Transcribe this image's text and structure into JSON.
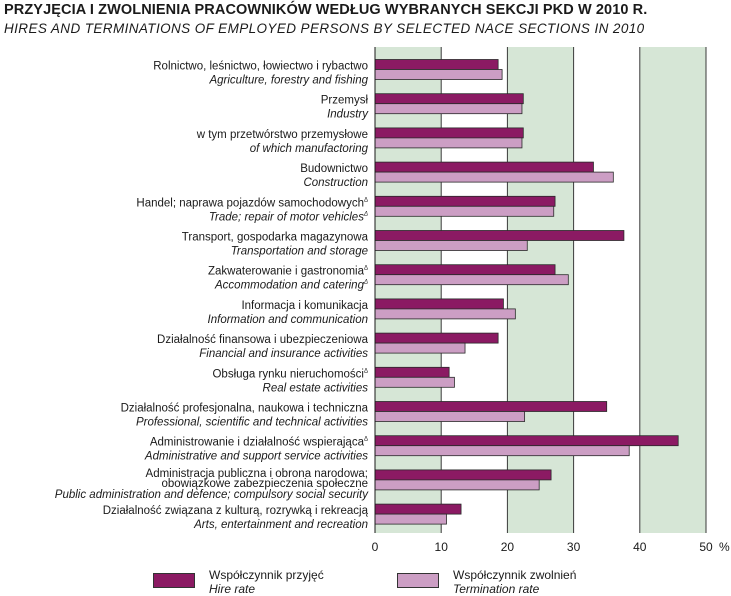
{
  "title": "PRZYJĘCIA I ZWOLNIENIA PRACOWNIKÓW WEDŁUG WYBRANYCH SEKCJI PKD W 2010 R.",
  "subtitle": "HIRES AND TERMINATIONS OF EMPLOYED PERSONS BY SELECTED NACE SECTIONS IN 2010",
  "colors": {
    "hire": "#8b1a63",
    "termination": "#cc9ec4",
    "plot_background": "#d6e6d6",
    "gridline": "#3a3a3a"
  },
  "chart_data": {
    "type": "bar",
    "orientation": "horizontal",
    "categories": [
      {
        "pl": "Rolnictwo, leśnictwo, łowiectwo i rybactwo",
        "en": "Agriculture, forestry and fishing"
      },
      {
        "pl": "Przemysł",
        "en": "Industry"
      },
      {
        "pl": "w tym przetwórstwo przemysłowe",
        "en": "of which manufactoring"
      },
      {
        "pl": "Budownictwo",
        "en": "Construction"
      },
      {
        "pl": "Handel; naprawa pojazdów samochodowych",
        "pl_sup": "Δ",
        "en": "Trade; repair of motor vehicles",
        "en_sup": "Δ"
      },
      {
        "pl": "Transport, gospodarka magazynowa",
        "en": "Transportation and storage"
      },
      {
        "pl": "Zakwaterowanie i gastronomia",
        "pl_sup": "Δ",
        "en": "Accommodation and catering",
        "en_sup": "Δ"
      },
      {
        "pl": "Informacja i komunikacja",
        "en": "Information and communication"
      },
      {
        "pl": "Działalność finansowa i ubezpieczeniowa",
        "en": "Financial and insurance activities"
      },
      {
        "pl": "Obsługa rynku nieruchomości",
        "pl_sup": "Δ",
        "en": "Real estate activities"
      },
      {
        "pl": "Działalność profesjonalna, naukowa i techniczna",
        "en": "Professional, scientific and technical activities"
      },
      {
        "pl": "Administrowanie i działalność wspierająca",
        "pl_sup": "Δ",
        "en": "Administrative and support service activities"
      },
      {
        "pl": "Administracja publiczna i obrona narodowa;",
        "pl2": "obowiązkowe zabezpieczenia społeczne",
        "en": "Public administration and defence; compulsory social security"
      },
      {
        "pl": "Działalność związana z kulturą, rozrywką i rekreacją",
        "en": "Arts, entertainment and recreation"
      }
    ],
    "series": [
      {
        "name": "Współczynnik przyjęć",
        "name_en": "Hire rate",
        "color": "#8b1a63",
        "values": [
          18.6,
          22.4,
          22.4,
          33.0,
          27.2,
          37.6,
          27.2,
          19.4,
          18.6,
          11.2,
          35.0,
          45.8,
          26.6,
          13.0
        ]
      },
      {
        "name": "Współczynnik zwolnień",
        "name_en": "Termination rate",
        "color": "#cc9ec4",
        "values": [
          19.2,
          22.2,
          22.2,
          36.0,
          27.0,
          23.0,
          29.2,
          21.2,
          13.6,
          12.0,
          22.6,
          38.4,
          24.8,
          10.8
        ]
      }
    ],
    "xlim": [
      0,
      50
    ],
    "xticks": [
      0,
      10,
      20,
      30,
      40,
      50
    ],
    "xunit": "%",
    "grid": true,
    "shaded_ranges": [
      [
        0,
        10
      ],
      [
        20,
        30
      ],
      [
        40,
        50
      ]
    ],
    "legend_position": "bottom"
  }
}
